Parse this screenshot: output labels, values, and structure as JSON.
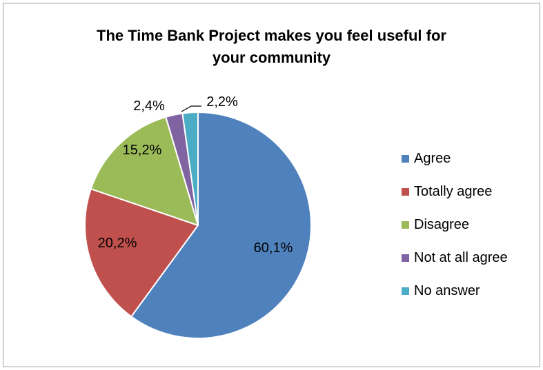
{
  "chart_data": {
    "type": "pie",
    "title": "The Time Bank Project makes you feel useful for your community",
    "title_lines": [
      "The Time Bank Project makes you feel useful for",
      "your community"
    ],
    "legend_position": "right",
    "slices": [
      {
        "name": "Agree",
        "value": 60.1,
        "label": "60,1%",
        "color": "#4f81bd"
      },
      {
        "name": "Totally agree",
        "value": 20.2,
        "label": "20,2%",
        "color": "#c0504d"
      },
      {
        "name": "Disagree",
        "value": 15.2,
        "label": "15,2%",
        "color": "#9bbb59"
      },
      {
        "name": "Not at all agree",
        "value": 2.4,
        "label": "2,4%",
        "color": "#8064a2"
      },
      {
        "name": "No answer",
        "value": 2.2,
        "label": "2,2%",
        "color": "#4bacc6"
      }
    ]
  }
}
